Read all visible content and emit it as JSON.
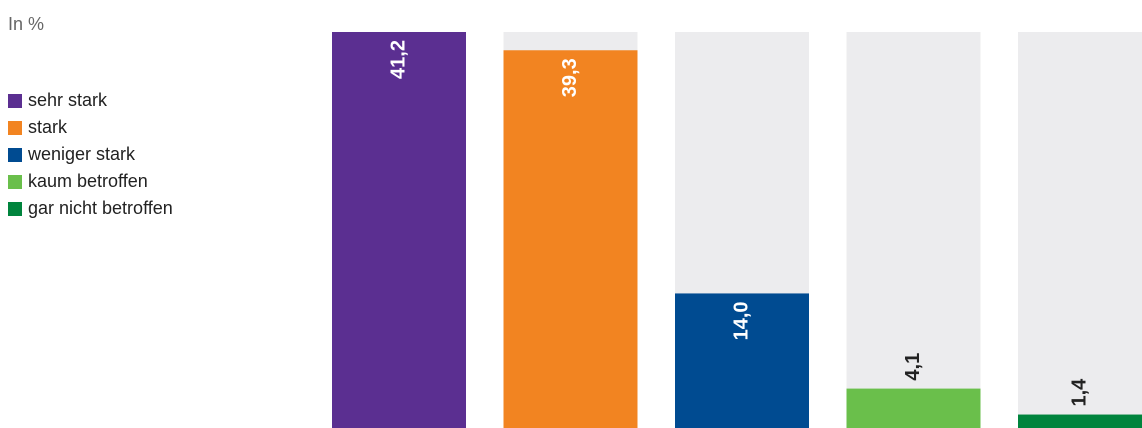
{
  "chart_data": {
    "type": "bar",
    "subtitle": "In %",
    "categories": [
      "sehr stark",
      "stark",
      "weniger stark",
      "kaum betroffen",
      "gar nicht betroffen"
    ],
    "values": [
      41.2,
      39.3,
      14.0,
      4.1,
      1.4
    ],
    "value_labels": [
      "41,2",
      "39,3",
      "14,0",
      "4,1",
      "1,4"
    ],
    "colors": [
      "#5b2f91",
      "#f28421",
      "#004b91",
      "#6abf4b",
      "#00843d"
    ],
    "ylim": [
      0,
      41.2
    ]
  }
}
